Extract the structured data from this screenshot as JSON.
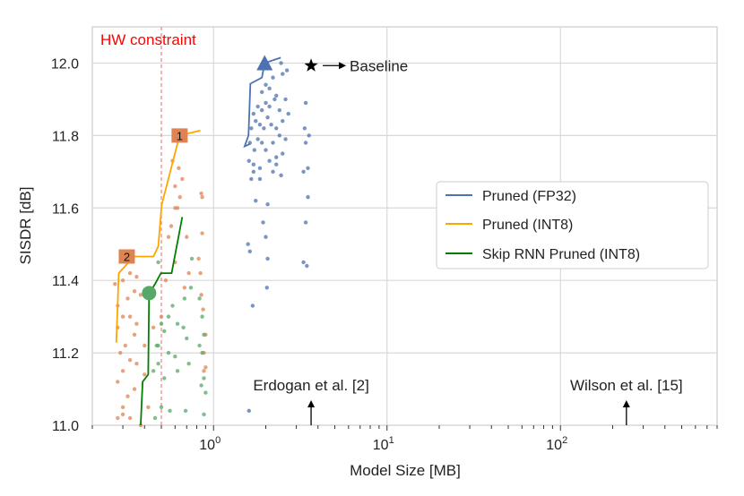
{
  "chart_data": {
    "type": "scatter",
    "xlabel": "Model Size [MB]",
    "ylabel": "SISDR [dB]",
    "xscale": "log",
    "xlim": [
      0.2,
      800
    ],
    "ylim": [
      11.0,
      12.1
    ],
    "x_ticks": [
      {
        "base": "10",
        "exp": "0",
        "value": 1
      },
      {
        "base": "10",
        "exp": "1",
        "value": 10
      },
      {
        "base": "10",
        "exp": "2",
        "value": 100
      }
    ],
    "y_ticks": [
      "11.0",
      "11.2",
      "11.4",
      "11.6",
      "11.8",
      "12.0"
    ],
    "grid": true,
    "legend_placement": "center-right",
    "colors": {
      "fp32": "#4c72b0",
      "int8_line": "#ffa500",
      "int8_points": "#dd8452",
      "skip_line": "#008000",
      "skip_points": "#55a868",
      "constraint": "#ff0000"
    },
    "series": [
      {
        "name": "Pruned (FP32)",
        "line": [
          [
            2.44,
            12.015
          ],
          [
            1.97,
            12.0
          ],
          [
            1.9,
            11.96
          ],
          [
            1.63,
            11.943
          ],
          [
            1.59,
            11.8
          ],
          [
            1.51,
            11.77
          ],
          [
            1.63,
            11.777
          ]
        ],
        "points": [
          [
            1.6,
            11.04
          ],
          [
            1.68,
            11.33
          ],
          [
            2.03,
            11.38
          ],
          [
            1.58,
            11.5
          ],
          [
            1.62,
            11.48
          ],
          [
            2.0,
            11.52
          ],
          [
            2.05,
            11.46
          ],
          [
            1.93,
            11.56
          ],
          [
            1.75,
            11.62
          ],
          [
            2.05,
            11.61
          ],
          [
            3.4,
            11.56
          ],
          [
            3.3,
            11.45
          ],
          [
            3.45,
            11.44
          ],
          [
            1.65,
            11.68
          ],
          [
            1.7,
            11.7
          ],
          [
            2.2,
            11.7
          ],
          [
            2.45,
            11.69
          ],
          [
            1.6,
            11.73
          ],
          [
            1.7,
            11.72
          ],
          [
            1.85,
            11.71
          ],
          [
            2.1,
            11.73
          ],
          [
            2.3,
            11.74
          ],
          [
            2.5,
            11.75
          ],
          [
            3.3,
            11.7
          ],
          [
            3.5,
            11.71
          ],
          [
            1.62,
            11.78
          ],
          [
            1.72,
            11.76
          ],
          [
            1.8,
            11.79
          ],
          [
            1.9,
            11.78
          ],
          [
            2.0,
            11.76
          ],
          [
            2.2,
            11.78
          ],
          [
            2.4,
            11.8
          ],
          [
            2.6,
            11.79
          ],
          [
            3.4,
            11.78
          ],
          [
            3.55,
            11.8
          ],
          [
            1.65,
            11.82
          ],
          [
            1.75,
            11.84
          ],
          [
            1.85,
            11.83
          ],
          [
            1.95,
            11.82
          ],
          [
            2.05,
            11.85
          ],
          [
            2.15,
            11.83
          ],
          [
            2.3,
            11.82
          ],
          [
            2.5,
            11.84
          ],
          [
            3.35,
            11.82
          ],
          [
            1.7,
            11.86
          ],
          [
            1.8,
            11.88
          ],
          [
            1.9,
            11.87
          ],
          [
            2.0,
            11.89
          ],
          [
            2.1,
            11.88
          ],
          [
            2.25,
            11.9
          ],
          [
            2.4,
            11.87
          ],
          [
            2.7,
            11.86
          ],
          [
            3.4,
            11.89
          ],
          [
            1.9,
            11.92
          ],
          [
            2.0,
            11.94
          ],
          [
            2.1,
            11.93
          ],
          [
            2.3,
            11.91
          ],
          [
            2.6,
            11.9
          ],
          [
            2.2,
            11.96
          ],
          [
            2.5,
            11.97
          ],
          [
            2.45,
            12.0
          ],
          [
            2.65,
            11.98
          ],
          [
            1.85,
            11.68
          ],
          [
            2.3,
            11.72
          ],
          [
            3.5,
            11.63
          ]
        ],
        "marker": {
          "shape": "triangle",
          "x": 1.97,
          "y": 12.0
        }
      },
      {
        "name": "Pruned (INT8)",
        "line": [
          [
            0.84,
            11.814
          ],
          [
            0.637,
            11.8
          ],
          [
            0.502,
            11.608
          ],
          [
            0.48,
            11.494
          ],
          [
            0.45,
            11.466
          ],
          [
            0.348,
            11.466
          ],
          [
            0.31,
            11.44
          ],
          [
            0.284,
            11.42
          ],
          [
            0.275,
            11.228
          ]
        ],
        "points": [
          [
            0.28,
            11.02
          ],
          [
            0.3,
            11.03
          ],
          [
            0.33,
            11.02
          ],
          [
            0.3,
            11.05
          ],
          [
            0.32,
            11.08
          ],
          [
            0.28,
            11.12
          ],
          [
            0.3,
            11.15
          ],
          [
            0.33,
            11.18
          ],
          [
            0.36,
            11.17
          ],
          [
            0.29,
            11.2
          ],
          [
            0.31,
            11.22
          ],
          [
            0.35,
            11.25
          ],
          [
            0.4,
            11.22
          ],
          [
            0.28,
            11.27
          ],
          [
            0.3,
            11.3
          ],
          [
            0.33,
            11.3
          ],
          [
            0.36,
            11.28
          ],
          [
            0.28,
            11.33
          ],
          [
            0.32,
            11.35
          ],
          [
            0.35,
            11.37
          ],
          [
            0.38,
            11.36
          ],
          [
            0.3,
            11.4
          ],
          [
            0.33,
            11.42
          ],
          [
            0.36,
            11.41
          ],
          [
            0.27,
            11.39
          ],
          [
            0.53,
            11.4
          ],
          [
            0.6,
            11.45
          ],
          [
            0.55,
            11.52
          ],
          [
            0.62,
            11.6
          ],
          [
            0.6,
            11.6
          ],
          [
            0.85,
            11.36
          ],
          [
            0.87,
            11.32
          ],
          [
            0.82,
            11.46
          ],
          [
            0.84,
            11.42
          ],
          [
            0.86,
            11.53
          ],
          [
            0.9,
            11.25
          ],
          [
            0.88,
            11.2
          ],
          [
            0.58,
            11.73
          ],
          [
            0.63,
            11.71
          ],
          [
            0.6,
            11.66
          ],
          [
            0.64,
            11.63
          ],
          [
            0.57,
            11.55
          ],
          [
            0.66,
            11.68
          ],
          [
            0.7,
            11.52
          ],
          [
            0.5,
            11.3
          ],
          [
            0.45,
            11.27
          ],
          [
            0.85,
            11.64
          ],
          [
            0.86,
            11.63
          ],
          [
            0.35,
            11.1
          ],
          [
            0.38,
            11.0
          ],
          [
            0.42,
            11.05
          ],
          [
            0.4,
            11.14
          ],
          [
            0.88,
            11.15
          ],
          [
            0.9,
            11.16
          ],
          [
            0.68,
            11.38
          ],
          [
            0.72,
            11.42
          ]
        ],
        "labels": [
          {
            "text": "1",
            "x": 0.637,
            "y": 11.8
          },
          {
            "text": "2",
            "x": 0.316,
            "y": 11.466
          }
        ]
      },
      {
        "name": "Skip RNN Pruned (INT8)",
        "line": [
          [
            0.66,
            11.575
          ],
          [
            0.573,
            11.42
          ],
          [
            0.497,
            11.42
          ],
          [
            0.46,
            11.39
          ],
          [
            0.425,
            11.365
          ],
          [
            0.42,
            11.14
          ],
          [
            0.39,
            11.12
          ],
          [
            0.38,
            11.0
          ]
        ],
        "points": [
          [
            0.5,
            11.28
          ],
          [
            0.55,
            11.3
          ],
          [
            0.58,
            11.33
          ],
          [
            0.48,
            11.22
          ],
          [
            0.52,
            11.26
          ],
          [
            0.62,
            11.28
          ],
          [
            0.67,
            11.27
          ],
          [
            0.7,
            11.24
          ],
          [
            0.55,
            11.2
          ],
          [
            0.6,
            11.19
          ],
          [
            0.48,
            11.17
          ],
          [
            0.47,
            11.22
          ],
          [
            0.52,
            11.13
          ],
          [
            0.62,
            11.15
          ],
          [
            0.72,
            11.17
          ],
          [
            0.68,
            11.35
          ],
          [
            0.74,
            11.38
          ],
          [
            0.83,
            11.35
          ],
          [
            0.75,
            11.46
          ],
          [
            0.86,
            11.3
          ],
          [
            0.88,
            11.25
          ],
          [
            0.86,
            11.2
          ],
          [
            0.88,
            11.13
          ],
          [
            0.9,
            11.09
          ],
          [
            0.85,
            11.11
          ],
          [
            0.45,
            11.15
          ],
          [
            0.46,
            11.02
          ],
          [
            0.5,
            11.05
          ],
          [
            0.56,
            11.04
          ],
          [
            0.69,
            11.04
          ],
          [
            0.88,
            11.03
          ],
          [
            0.83,
            11.22
          ],
          [
            0.48,
            11.45
          ]
        ],
        "marker": {
          "shape": "circle",
          "x": 0.425,
          "y": 11.365
        }
      }
    ],
    "annotations": {
      "hw_constraint": {
        "text": "HW constraint",
        "x": 0.5
      },
      "baseline": {
        "text": "Baseline",
        "x": 3.65,
        "y": 11.993
      },
      "erdogan": {
        "text": "Erdogan et al. [2]",
        "x": 3.65
      },
      "wilson": {
        "text": "Wilson et al. [15]",
        "x": 240
      }
    }
  }
}
